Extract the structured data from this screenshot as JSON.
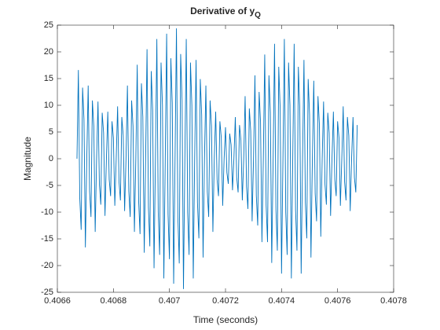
{
  "chart_data": {
    "type": "line",
    "title": "Derivative of y",
    "title_subscript": "Q",
    "xlabel": "Time (seconds)",
    "ylabel": "Magnitude",
    "color": "#0072bd",
    "xlim": [
      0.4066,
      0.4078
    ],
    "xticks": [
      0.4066,
      0.4068,
      0.407,
      0.4072,
      0.4074,
      0.4076,
      0.4078
    ],
    "ylim": [
      -25,
      25
    ],
    "yticks": [
      -25,
      -20,
      -15,
      -10,
      -5,
      0,
      5,
      10,
      15,
      20,
      25
    ],
    "grid": false,
    "x": [
      0.40667,
      0.406675,
      0.40668,
      0.406685,
      0.40669,
      0.406695,
      0.4067,
      0.406705,
      0.40671,
      0.406715,
      0.40672,
      0.406725,
      0.40673,
      0.406735,
      0.40674,
      0.406745,
      0.40675,
      0.406755,
      0.40676,
      0.406765,
      0.40677,
      0.406775,
      0.40678,
      0.406785,
      0.40679,
      0.406795,
      0.4068,
      0.406805,
      0.40681,
      0.406815,
      0.40682,
      0.406825,
      0.40683,
      0.406835,
      0.40684,
      0.406845,
      0.40685,
      0.406855,
      0.40686,
      0.406865,
      0.40687,
      0.406875,
      0.40688,
      0.406885,
      0.40689,
      0.406895,
      0.4069,
      0.406905,
      0.40691,
      0.406915,
      0.40692,
      0.406925,
      0.40693,
      0.406935,
      0.40694,
      0.406945,
      0.40695,
      0.406955,
      0.40696,
      0.406965,
      0.40697,
      0.406975,
      0.40698,
      0.406985,
      0.40699,
      0.406995,
      0.407,
      0.407005,
      0.40701,
      0.407015,
      0.40702,
      0.407025,
      0.40703,
      0.407035,
      0.40704,
      0.407045,
      0.40705,
      0.407055,
      0.40706,
      0.407065,
      0.40707,
      0.407075,
      0.40708,
      0.407085,
      0.40709,
      0.407095,
      0.4071,
      0.407105,
      0.40711,
      0.407115,
      0.40712,
      0.407125,
      0.40713,
      0.407135,
      0.40714,
      0.407145,
      0.40715,
      0.407155,
      0.40716,
      0.407165,
      0.40717,
      0.407175,
      0.40718,
      0.407185,
      0.40719,
      0.407195,
      0.4072,
      0.407205,
      0.40721,
      0.407215,
      0.40722,
      0.407225,
      0.40723,
      0.407235,
      0.40724,
      0.407245,
      0.40725,
      0.407255,
      0.40726,
      0.407265,
      0.40727,
      0.407275,
      0.40728,
      0.407285,
      0.40729,
      0.407295,
      0.4073,
      0.407305,
      0.40731,
      0.407315,
      0.40732,
      0.407325,
      0.40733,
      0.407335,
      0.40734,
      0.407345,
      0.40735,
      0.407355,
      0.40736,
      0.407365,
      0.40737,
      0.407375,
      0.40738,
      0.407385,
      0.40739,
      0.407395,
      0.4074,
      0.407405,
      0.40741,
      0.407415,
      0.40742,
      0.407425,
      0.40743,
      0.407435,
      0.40744,
      0.407445,
      0.40745,
      0.407455,
      0.40746,
      0.407465,
      0.40747,
      0.407475,
      0.40748,
      0.407485,
      0.40749,
      0.407495,
      0.4075,
      0.407505,
      0.40751,
      0.407515,
      0.40752,
      0.407525,
      0.40753,
      0.407535,
      0.40754,
      0.407545,
      0.40755,
      0.407555,
      0.40756,
      0.407565,
      0.40757,
      0.407575,
      0.40758,
      0.407585,
      0.40759,
      0.407595,
      0.4076,
      0.407605,
      0.40761,
      0.407615,
      0.40762,
      0.407625,
      0.40763,
      0.407635,
      0.40764,
      0.407645,
      0.40765,
      0.407655,
      0.40766,
      0.407665,
      0.40767
    ],
    "values": [
      0,
      16.6,
      -7.4,
      -13.3,
      13.3,
      7.4,
      -16.6,
      0,
      13.7,
      -6.1,
      -10.9,
      10.9,
      6.1,
      -13.7,
      0,
      10.7,
      -4.8,
      -8.6,
      8.6,
      4.8,
      -10.7,
      0,
      8.8,
      -3.9,
      -7.0,
      7.0,
      3.9,
      -8.8,
      0,
      9.8,
      -4.3,
      -7.8,
      7.8,
      4.3,
      -9.8,
      0,
      13.7,
      -6.1,
      -10.9,
      10.9,
      6.1,
      -13.7,
      0,
      17.6,
      -7.8,
      -14.1,
      14.1,
      7.8,
      -17.6,
      0,
      20.5,
      -9.1,
      -16.4,
      16.4,
      9.1,
      -20.5,
      0,
      22.4,
      -10.0,
      -18.0,
      18.0,
      10.0,
      -22.4,
      0,
      23.4,
      -10.4,
      -18.8,
      18.8,
      10.4,
      -23.4,
      0,
      24.4,
      -10.9,
      -19.6,
      19.6,
      10.9,
      -24.4,
      0,
      22.4,
      -10.0,
      -18.0,
      18.0,
      10.0,
      -22.4,
      0,
      18.5,
      -8.2,
      -14.9,
      14.9,
      8.2,
      -18.5,
      0,
      13.7,
      -6.1,
      -10.9,
      10.9,
      6.1,
      -13.7,
      0,
      8.8,
      -3.9,
      -7.0,
      7.0,
      3.9,
      -8.8,
      0,
      5.9,
      -2.6,
      -4.7,
      4.7,
      2.6,
      -5.9,
      0,
      7.8,
      -3.5,
      -6.3,
      6.3,
      3.5,
      -7.8,
      0,
      11.7,
      -5.2,
      -9.4,
      9.4,
      5.2,
      -11.7,
      0,
      15.6,
      -6.9,
      -12.5,
      12.5,
      6.9,
      -15.6,
      0,
      19.5,
      -8.7,
      -15.6,
      15.6,
      8.7,
      -19.5,
      0,
      21.5,
      -9.5,
      -17.2,
      17.2,
      9.5,
      -21.5,
      0,
      22.4,
      -10.0,
      -18.0,
      18.0,
      10.0,
      -22.4,
      0,
      21.5,
      -9.5,
      -17.2,
      17.2,
      9.5,
      -21.5,
      0,
      18.5,
      -8.2,
      -14.9,
      14.9,
      8.2,
      -18.5,
      0,
      14.6,
      -6.5,
      -11.7,
      11.7,
      6.5,
      -14.6,
      0,
      10.7,
      -4.8,
      -8.6,
      8.6,
      4.8,
      -10.7,
      0,
      8.8,
      -3.9,
      -7.0,
      7.0,
      3.9,
      -8.8,
      0,
      9.8,
      -4.3,
      -7.8,
      7.8,
      4.3,
      -9.8,
      0,
      7.8,
      -3.5,
      -6.3,
      6.3
    ]
  }
}
